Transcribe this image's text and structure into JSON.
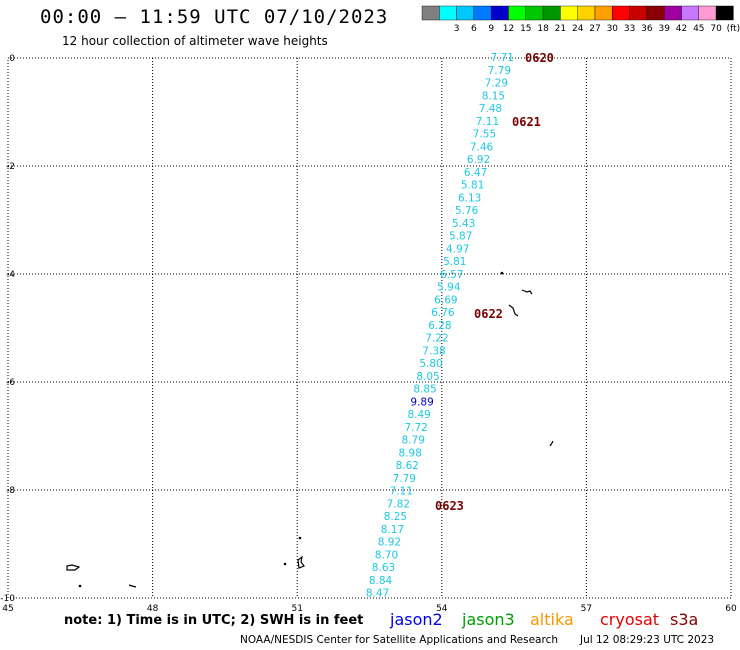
{
  "header": {
    "title": "00:00 – 11:59 UTC 07/10/2023",
    "subtitle": "12 hour collection of altimeter wave heights"
  },
  "colorbar": {
    "bins": [
      {
        "label": "",
        "color": "#808080"
      },
      {
        "label": "3",
        "color": "#00ffff"
      },
      {
        "label": "6",
        "color": "#00c8ff"
      },
      {
        "label": "9",
        "color": "#0078ff"
      },
      {
        "label": "12",
        "color": "#0000cd"
      },
      {
        "label": "15",
        "color": "#00ff00"
      },
      {
        "label": "18",
        "color": "#00c800"
      },
      {
        "label": "21",
        "color": "#009600"
      },
      {
        "label": "24",
        "color": "#ffff00"
      },
      {
        "label": "27",
        "color": "#ffd200"
      },
      {
        "label": "30",
        "color": "#ffa000"
      },
      {
        "label": "33",
        "color": "#ff0000"
      },
      {
        "label": "36",
        "color": "#c80000"
      },
      {
        "label": "39",
        "color": "#8b0000"
      },
      {
        "label": "42",
        "color": "#a000a0"
      },
      {
        "label": "45",
        "color": "#c878ff"
      },
      {
        "label": "70",
        "color": "#ff9ad2"
      },
      {
        "label": "(ft)",
        "color": "#000000"
      }
    ]
  },
  "map": {
    "lon_ticks": [
      "45",
      "48",
      "51",
      "54",
      "57",
      "60"
    ],
    "lat_ticks": [
      "0",
      "-2",
      "-4",
      "-6",
      "-8",
      "-10"
    ]
  },
  "track": {
    "color": "#1ec8e6",
    "dark_color": "#0000cd",
    "values": [
      "7.71",
      "7.79",
      "7.29",
      "8.15",
      "7.48",
      "7.11",
      "7.55",
      "7.46",
      "6.92",
      "6.47",
      "5.81",
      "6.13",
      "5.76",
      "5.43",
      "5.87",
      "4.97",
      "5.81",
      "6.57",
      "5.94",
      "6.69",
      "6.76",
      "6.28",
      "7.22",
      "7.38",
      "5.80",
      "8.05",
      "8.85",
      "9.89",
      "8.49",
      "7.72",
      "8.79",
      "8.98",
      "8.62",
      "7.79",
      "7.11",
      "7.82",
      "8.25",
      "8.17",
      "8.92",
      "8.70",
      "8.63",
      "8.84",
      "8.47"
    ],
    "pass_labels": [
      "0620",
      "0621",
      "0622",
      "0623"
    ]
  },
  "footer": {
    "note": "note:  1) Time is in UTC;  2) SWH is in feet",
    "satellites": [
      {
        "name": "jason2",
        "color": "#0000e6"
      },
      {
        "name": "jason3",
        "color": "#00a000"
      },
      {
        "name": "altika",
        "color": "#ff9600"
      },
      {
        "name": "cryosat",
        "color": "#e60000"
      },
      {
        "name": "s3a",
        "color": "#8b0000"
      }
    ],
    "credit": "NOAA/NESDIS Center for Satellite Applications and Research",
    "timestamp": "Jul 12 08:29:23 UTC 2023"
  }
}
